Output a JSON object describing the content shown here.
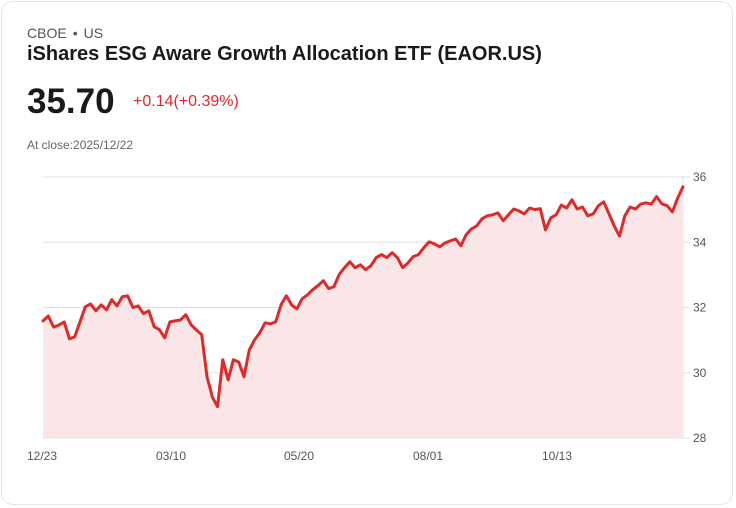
{
  "header": {
    "exchange": "CBOE",
    "separator": "•",
    "market": "US",
    "title": "iShares ESG Aware Growth Allocation ETF (EAOR.US)",
    "price": "35.70",
    "change": "+0.14(+0.39%)",
    "close_label": "At close:2025/12/22"
  },
  "colors": {
    "line": "#e02a2a",
    "fill": "#fbe6e7",
    "grid": "#e0e0e0",
    "change": "#e02a2a"
  },
  "chart_data": {
    "type": "area",
    "title": "",
    "xlabel": "",
    "ylabel": "",
    "ylim": [
      28,
      36
    ],
    "yticks": [
      "36",
      "34",
      "32",
      "30",
      "28"
    ],
    "ytick_values": [
      36,
      34,
      32,
      30,
      28
    ],
    "xticks": [
      "12/23",
      "03/10",
      "05/20",
      "08/01",
      "10/13"
    ],
    "grid": true,
    "series": [
      {
        "name": "EAOR.US",
        "values": [
          31.59,
          31.74,
          31.4,
          31.46,
          31.56,
          31.04,
          31.1,
          31.56,
          32.02,
          32.11,
          31.9,
          32.08,
          31.93,
          32.24,
          32.05,
          32.33,
          32.36,
          32.0,
          32.05,
          31.81,
          31.9,
          31.41,
          31.32,
          31.07,
          31.56,
          31.59,
          31.62,
          31.78,
          31.47,
          31.31,
          31.17,
          29.88,
          29.26,
          28.96,
          30.4,
          29.78,
          30.4,
          30.33,
          29.88,
          30.7,
          31.01,
          31.23,
          31.53,
          31.5,
          31.56,
          32.08,
          32.36,
          32.08,
          31.96,
          32.27,
          32.39,
          32.55,
          32.67,
          32.82,
          32.58,
          32.64,
          33.01,
          33.22,
          33.4,
          33.22,
          33.31,
          33.16,
          33.28,
          33.53,
          33.62,
          33.53,
          33.68,
          33.53,
          33.22,
          33.37,
          33.56,
          33.62,
          33.83,
          34.01,
          33.95,
          33.86,
          33.98,
          34.04,
          34.1,
          33.89,
          34.23,
          34.41,
          34.5,
          34.72,
          34.81,
          34.84,
          34.9,
          34.66,
          34.84,
          35.02,
          34.96,
          34.87,
          35.05,
          35.0,
          35.03,
          34.38,
          34.75,
          34.84,
          35.14,
          35.05,
          35.3,
          35.02,
          35.08,
          34.81,
          34.87,
          35.12,
          35.24,
          34.87,
          34.5,
          34.19,
          34.81,
          35.08,
          35.02,
          35.17,
          35.21,
          35.17,
          35.4,
          35.18,
          35.12,
          34.93,
          35.36,
          35.7
        ]
      }
    ]
  }
}
